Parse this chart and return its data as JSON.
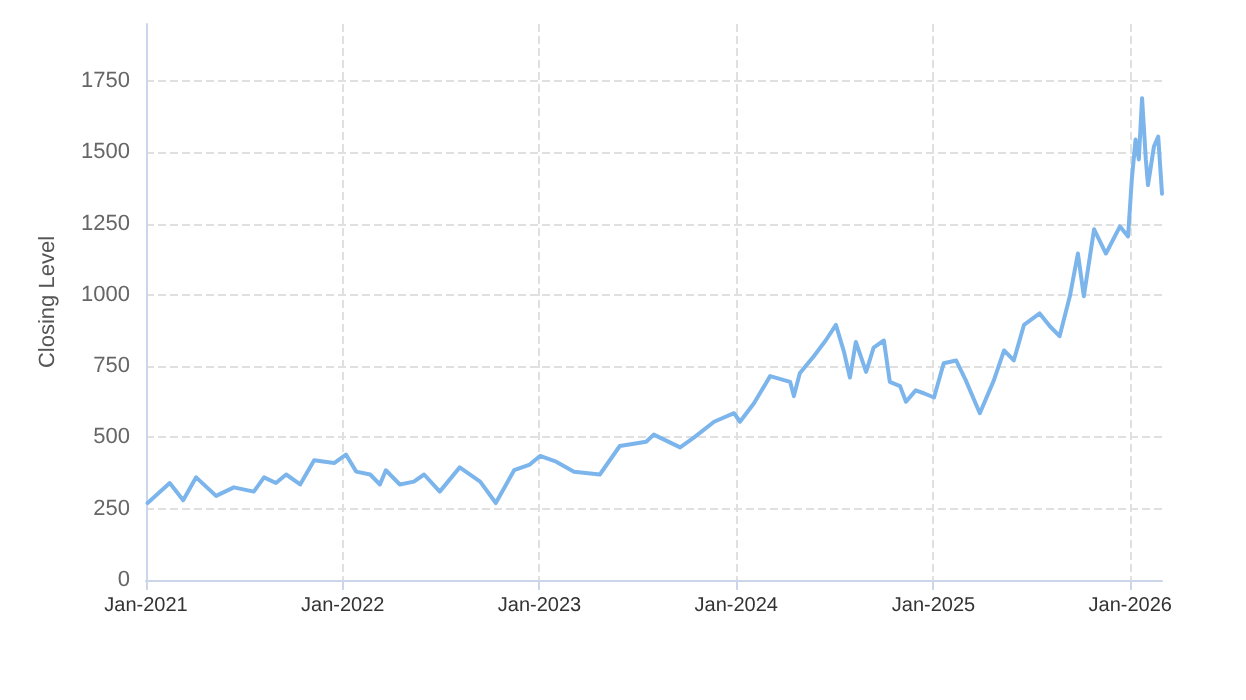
{
  "chart_data": {
    "type": "line",
    "ylabel": "Closing Level",
    "x": [
      "2021-01-04",
      "2021-02-14",
      "2021-03-11",
      "2021-04-04",
      "2021-05-11",
      "2021-06-13",
      "2021-07-20",
      "2021-08-08",
      "2021-08-30",
      "2021-09-18",
      "2021-10-14",
      "2021-11-09",
      "2021-12-16",
      "2022-01-07",
      "2022-01-26",
      "2022-02-21",
      "2022-03-11",
      "2022-03-22",
      "2022-04-17",
      "2022-05-13",
      "2022-06-01",
      "2022-06-30",
      "2022-08-06",
      "2022-09-13",
      "2022-10-12",
      "2022-11-15",
      "2022-12-14",
      "2023-01-02",
      "2023-02-01",
      "2023-03-06",
      "2023-04-23",
      "2023-05-30",
      "2023-07-18",
      "2023-08-01",
      "2023-09-19",
      "2023-10-15",
      "2023-11-21",
      "2023-12-28",
      "2024-01-08",
      "2024-02-03",
      "2024-03-04",
      "2024-04-10",
      "2024-04-17",
      "2024-04-28",
      "2024-05-24",
      "2024-06-15",
      "2024-07-04",
      "2024-07-19",
      "2024-07-30",
      "2024-08-10",
      "2024-08-29",
      "2024-09-12",
      "2024-10-01",
      "2024-10-12",
      "2024-10-31",
      "2024-11-11",
      "2024-11-29",
      "2024-12-14",
      "2025-01-02",
      "2025-01-20",
      "2025-02-12",
      "2025-03-02",
      "2025-03-28",
      "2025-04-23",
      "2025-05-12",
      "2025-05-30",
      "2025-06-18",
      "2025-07-17",
      "2025-08-05",
      "2025-08-23",
      "2025-09-11",
      "2025-09-26",
      "2025-10-07",
      "2025-10-26",
      "2025-11-17",
      "2025-12-13",
      "2025-12-28",
      "2026-01-04",
      "2026-01-11",
      "2026-01-17",
      "2026-01-23",
      "2026-01-30",
      "2026-02-03",
      "2026-02-14",
      "2026-02-22",
      "2026-03-01"
    ],
    "series": [
      {
        "color": "#7cb5ec",
        "values": [
          270,
          340,
          280,
          360,
          295,
          325,
          310,
          360,
          340,
          370,
          335,
          420,
          410,
          440,
          380,
          370,
          335,
          385,
          335,
          345,
          370,
          310,
          395,
          345,
          270,
          385,
          405,
          435,
          415,
          380,
          370,
          470,
          485,
          510,
          465,
          500,
          555,
          585,
          555,
          620,
          715,
          695,
          645,
          725,
          785,
          840,
          895,
          800,
          710,
          835,
          730,
          815,
          840,
          695,
          680,
          625,
          665,
          655,
          640,
          760,
          770,
          700,
          585,
          700,
          805,
          770,
          895,
          935,
          890,
          855,
          995,
          1145,
          995,
          1230,
          1145,
          1240,
          1205,
          1405,
          1545,
          1475,
          1690,
          1475,
          1385,
          1520,
          1555,
          1355
        ]
      }
    ],
    "xlim": [
      "2021-01-01",
      "2026-03-01"
    ],
    "xticks": [
      {
        "value": "2021-01-01",
        "label": "Jan-2021"
      },
      {
        "value": "2022-01-01",
        "label": "Jan-2022"
      },
      {
        "value": "2023-01-01",
        "label": "Jan-2023"
      },
      {
        "value": "2024-01-01",
        "label": "Jan-2024"
      },
      {
        "value": "2025-01-01",
        "label": "Jan-2025"
      },
      {
        "value": "2026-01-01",
        "label": "Jan-2026"
      }
    ],
    "ylim": [
      0,
      1950
    ],
    "yticks": [
      0,
      250,
      500,
      750,
      1000,
      1250,
      1500,
      1750
    ],
    "grid": true,
    "marker": "none",
    "line_style": "solid"
  }
}
